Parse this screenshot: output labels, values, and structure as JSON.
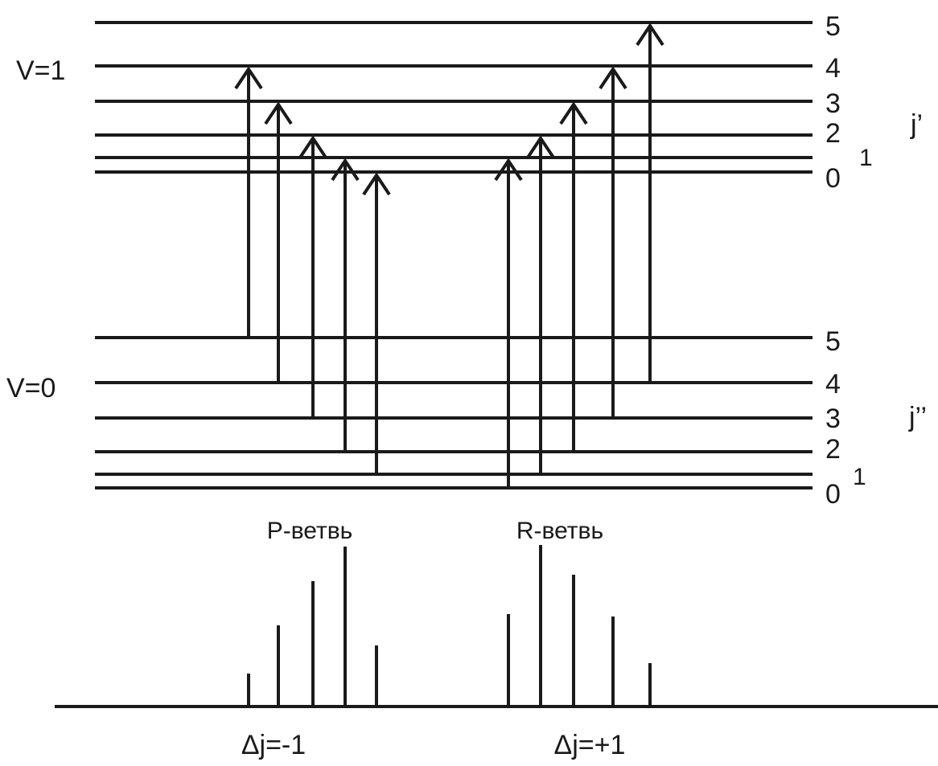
{
  "upper_state": {
    "label": "V=1",
    "quantum_label": "j’",
    "levels": [
      "5",
      "4",
      "3",
      "2",
      "1",
      "0"
    ]
  },
  "lower_state": {
    "label": "V=0",
    "quantum_label": "j’’",
    "levels": [
      "5",
      "4",
      "3",
      "2",
      "1",
      "0"
    ]
  },
  "branches": [
    {
      "name": "P-ветвь",
      "rule": "Δj=-1",
      "transitions": [
        {
          "from": 5,
          "to": 4
        },
        {
          "from": 4,
          "to": 3
        },
        {
          "from": 3,
          "to": 2
        },
        {
          "from": 2,
          "to": 1
        },
        {
          "from": 1,
          "to": 0
        }
      ]
    },
    {
      "name": "R-ветвь",
      "rule": "Δj=+1",
      "transitions": [
        {
          "from": 0,
          "to": 1
        },
        {
          "from": 1,
          "to": 2
        },
        {
          "from": 2,
          "to": 3
        },
        {
          "from": 3,
          "to": 4
        },
        {
          "from": 4,
          "to": 5
        }
      ]
    }
  ]
}
